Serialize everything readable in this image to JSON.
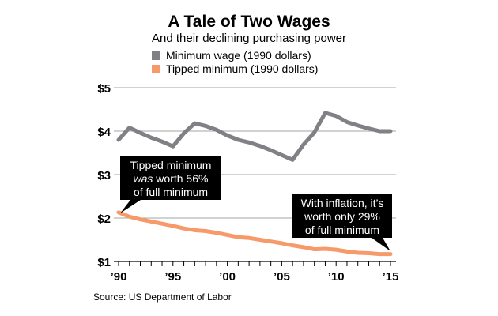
{
  "chart_data": {
    "type": "line",
    "title": "A Tale of Two Wages",
    "subtitle": "And their declining purchasing power",
    "x": [
      1990,
      1991,
      1992,
      1993,
      1994,
      1995,
      1996,
      1997,
      1998,
      1999,
      2000,
      2001,
      2002,
      2003,
      2004,
      2005,
      2006,
      2007,
      2008,
      2009,
      2010,
      2011,
      2012,
      2013,
      2014,
      2015
    ],
    "series": [
      {
        "name": "Minimum wage (1990 dollars)",
        "color": "#808184",
        "values": [
          3.8,
          4.08,
          3.96,
          3.85,
          3.76,
          3.65,
          3.95,
          4.18,
          4.12,
          4.03,
          3.9,
          3.8,
          3.74,
          3.66,
          3.56,
          3.45,
          3.34,
          3.69,
          3.97,
          4.42,
          4.35,
          4.21,
          4.13,
          4.06,
          4.0,
          4.0
        ]
      },
      {
        "name": "Tipped minimum (1990 dollars)",
        "color": "#f79a6a",
        "values": [
          2.13,
          2.03,
          1.97,
          1.92,
          1.87,
          1.82,
          1.76,
          1.72,
          1.7,
          1.66,
          1.61,
          1.56,
          1.54,
          1.5,
          1.46,
          1.42,
          1.37,
          1.33,
          1.28,
          1.29,
          1.27,
          1.23,
          1.2,
          1.19,
          1.17,
          1.17
        ]
      }
    ],
    "ylim": [
      1,
      5
    ],
    "yticks": [
      {
        "v": 5,
        "label": "$5"
      },
      {
        "v": 4,
        "label": "$4"
      },
      {
        "v": 3,
        "label": "$3"
      },
      {
        "v": 2,
        "label": "$2"
      },
      {
        "v": 1,
        "label": "$1"
      }
    ],
    "xticks": [
      {
        "v": 1990,
        "label": "’90"
      },
      {
        "v": 1995,
        "label": "’95"
      },
      {
        "v": 2000,
        "label": "’00"
      },
      {
        "v": 2005,
        "label": "’05"
      },
      {
        "v": 2010,
        "label": "’10"
      },
      {
        "v": 2015,
        "label": "’15"
      }
    ],
    "grid": true,
    "legend": "top",
    "annotations": [
      {
        "lines": [
          "Tipped minimum",
          "was worth 56%",
          "of full minimum"
        ],
        "x": 1990,
        "y": 2.13
      },
      {
        "lines": [
          "With inflation, it’s",
          "worth only 29%",
          "of full minimum"
        ],
        "x": 2015,
        "y": 1.17
      }
    ],
    "source": "Source: US Department of Labor"
  }
}
